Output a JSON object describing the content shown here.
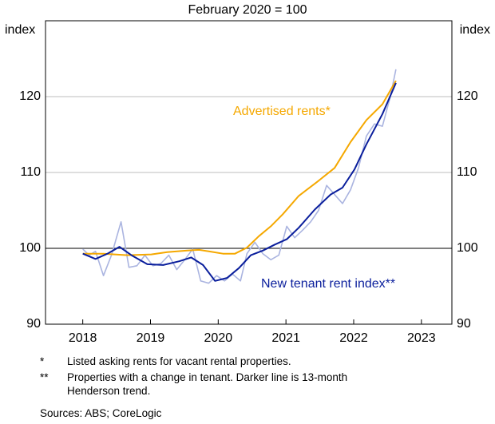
{
  "chart_data": {
    "type": "line",
    "title": "February 2020 = 100",
    "ylabel": "index",
    "y2label": "index",
    "xlim": [
      2017.45,
      2023.45
    ],
    "xticks": [
      2018,
      2019,
      2020,
      2021,
      2022,
      2023
    ],
    "ylim": [
      90,
      130
    ],
    "yticks": [
      90,
      100,
      110,
      120
    ],
    "grid": true,
    "hline": 100,
    "series": [
      {
        "name": "Advertised rents*",
        "color": "#f5a800",
        "x": [
          2018,
          2018.306,
          2018.659,
          2019.012,
          2019.247,
          2019.541,
          2019.718,
          2019.859,
          2020.071,
          2020.247,
          2020.424,
          2020.6,
          2020.776,
          2020.953,
          2021.188,
          2021.482,
          2021.718,
          2021.953,
          2022.188,
          2022.424,
          2022.624
        ],
        "values": [
          99.3,
          99.3,
          99.1,
          99.2,
          99.5,
          99.7,
          99.8,
          99.6,
          99.3,
          99.3,
          100.1,
          101.6,
          102.9,
          104.5,
          106.9,
          108.9,
          110.6,
          114,
          116.9,
          119,
          122.1
        ]
      },
      {
        "name": "New tenant rent index**",
        "color": "#0a1e9c",
        "x": [
          2018,
          2018.188,
          2018.365,
          2018.541,
          2018.718,
          2018.953,
          2019.188,
          2019.424,
          2019.6,
          2019.776,
          2019.953,
          2020.129,
          2020.306,
          2020.482,
          2020.659,
          2020.835,
          2021.012,
          2021.188,
          2021.424,
          2021.659,
          2021.835,
          2022.012,
          2022.188,
          2022.424,
          2022.624
        ],
        "values": [
          99.3,
          98.6,
          99.3,
          100.2,
          99.1,
          97.9,
          97.8,
          98.3,
          98.8,
          97.8,
          95.7,
          96.1,
          97.4,
          99.1,
          99.7,
          100.5,
          101.2,
          102.7,
          105.1,
          107.1,
          108,
          110.4,
          113.7,
          117.7,
          121.8
        ]
      },
      {
        "color": "#aab4e0",
        "x": [
          2018,
          2018.094,
          2018.188,
          2018.306,
          2018.424,
          2018.565,
          2018.682,
          2018.8,
          2018.918,
          2019.035,
          2019.153,
          2019.271,
          2019.388,
          2019.506,
          2019.624,
          2019.741,
          2019.859,
          2019.976,
          2020.094,
          2020.212,
          2020.329,
          2020.424,
          2020.541,
          2020.659,
          2020.776,
          2020.894,
          2021.012,
          2021.129,
          2021.247,
          2021.365,
          2021.482,
          2021.6,
          2021.718,
          2021.835,
          2021.953,
          2022.071,
          2022.188,
          2022.306,
          2022.424,
          2022.541,
          2022.624
        ],
        "values": [
          99.9,
          99.1,
          99.6,
          96.4,
          99.1,
          103.5,
          97.5,
          97.7,
          99.1,
          97.7,
          98,
          99.1,
          97.2,
          98.5,
          99.9,
          95.7,
          95.4,
          96.4,
          95.7,
          96.6,
          95.7,
          99.3,
          100.8,
          99.3,
          98.5,
          99.1,
          102.9,
          101.4,
          102.4,
          103.5,
          105,
          108.3,
          107.1,
          105.9,
          107.7,
          110.6,
          114.8,
          116.4,
          116.1,
          120,
          123.6
        ]
      }
    ],
    "notes": [
      {
        "marker": "*",
        "text": "Listed asking rents for vacant rental properties."
      },
      {
        "marker": "**",
        "text": "Properties with a change in tenant. Darker line is 13-month Henderson trend."
      }
    ],
    "source": "Sources: ABS; CoreLogic"
  }
}
